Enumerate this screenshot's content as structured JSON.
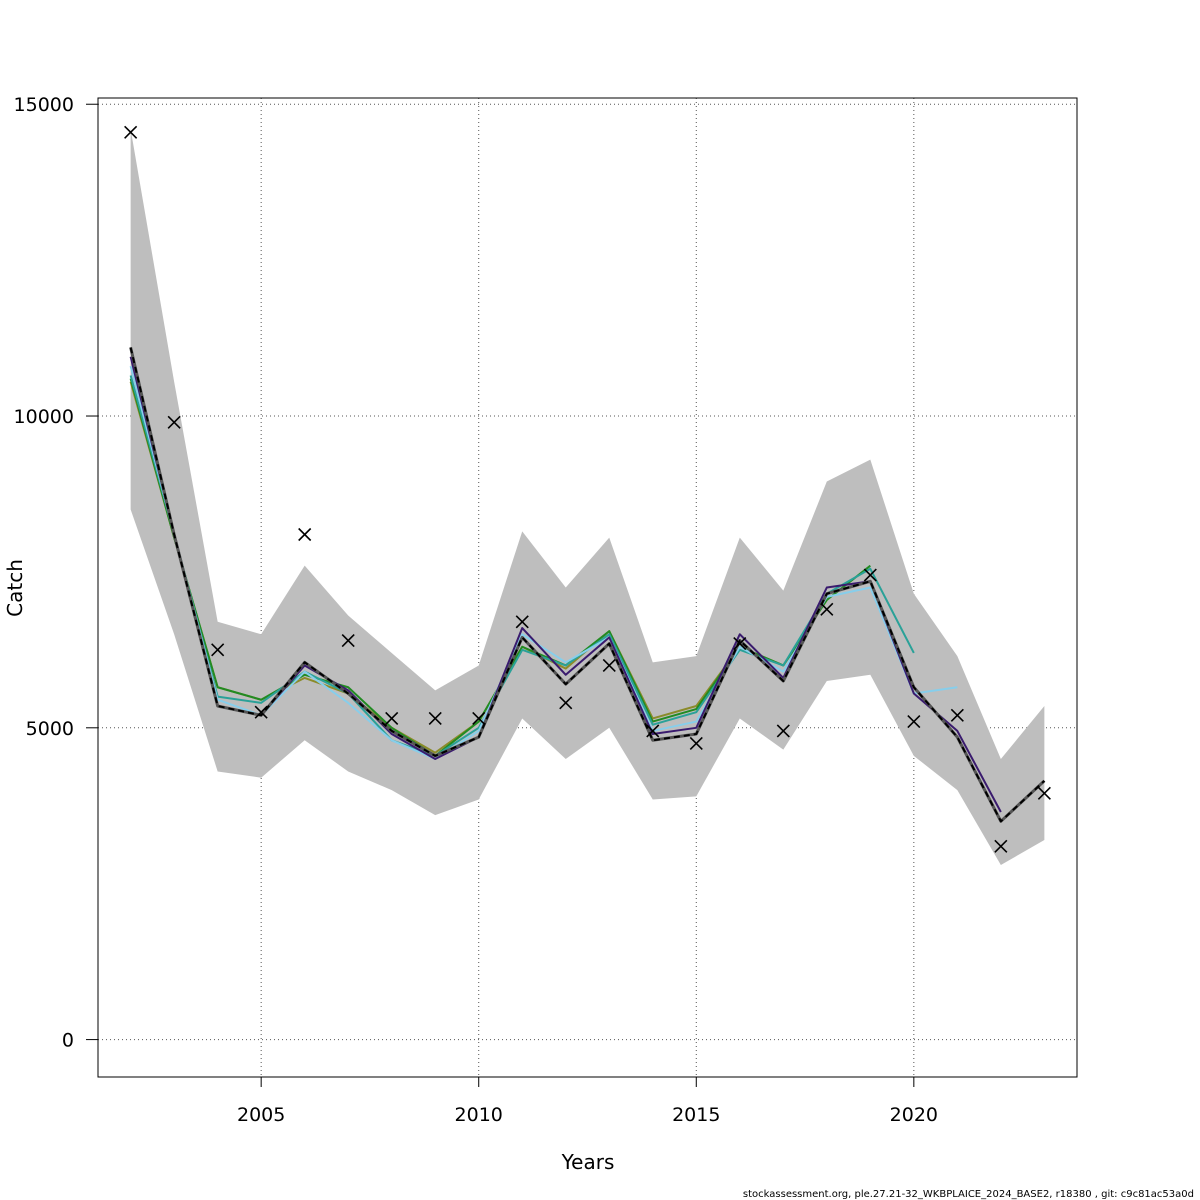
{
  "chart_data": {
    "type": "line",
    "xlabel": "Years",
    "ylabel": "Catch",
    "xlim": [
      2001.25,
      2023.75
    ],
    "ylim": [
      -600,
      15100
    ],
    "x_ticks": [
      2005,
      2010,
      2015,
      2020
    ],
    "y_ticks": [
      0,
      5000,
      10000,
      15000
    ],
    "x_tick_labels": [
      "2005",
      "2010",
      "2015",
      "2020"
    ],
    "y_tick_labels": [
      "0",
      "5000",
      "10000",
      "15000"
    ],
    "grid": true,
    "confidence_band": {
      "x": [
        2002,
        2003,
        2004,
        2005,
        2006,
        2007,
        2008,
        2009,
        2010,
        2011,
        2012,
        2013,
        2014,
        2015,
        2016,
        2017,
        2018,
        2019,
        2020,
        2021,
        2022,
        2023
      ],
      "upper": [
        14600,
        10550,
        6700,
        6500,
        7600,
        6800,
        6200,
        5600,
        6000,
        8150,
        7250,
        8050,
        6050,
        6150,
        8050,
        7200,
        8950,
        9300,
        7150,
        6150,
        4500,
        5350
      ],
      "lower": [
        8500,
        6500,
        4300,
        4200,
        4800,
        4300,
        4000,
        3600,
        3850,
        5150,
        4500,
        5000,
        3850,
        3900,
        5150,
        4650,
        5750,
        5850,
        4550,
        4000,
        2800,
        3200
      ],
      "color": "#bebebe"
    },
    "observed": {
      "x": [
        2002,
        2003,
        2004,
        2005,
        2006,
        2007,
        2008,
        2009,
        2010,
        2011,
        2012,
        2013,
        2014,
        2015,
        2016,
        2017,
        2018,
        2019,
        2020,
        2021,
        2022,
        2023
      ],
      "values": [
        14550,
        9900,
        6250,
        5250,
        8100,
        6400,
        5150,
        5150,
        5150,
        6700,
        5400,
        6000,
        4950,
        4750,
        6350,
        4950,
        6900,
        7450,
        5100,
        5200,
        3100,
        3950
      ],
      "marker": "x",
      "color": "#000000"
    },
    "series": [
      {
        "style": "dashed",
        "color": "#000000",
        "x": [
          2002,
          2003,
          2004,
          2005,
          2006,
          2007,
          2008,
          2009,
          2010,
          2011,
          2012,
          2013,
          2014,
          2015,
          2016,
          2017,
          2018,
          2019,
          2020,
          2021,
          2022,
          2023
        ],
        "values": [
          11100,
          8100,
          5350,
          5200,
          6050,
          5550,
          4950,
          4550,
          4850,
          6450,
          5700,
          6350,
          4800,
          4900,
          6400,
          5750,
          7150,
          7350,
          5650,
          4850,
          3500,
          4150
        ]
      },
      {
        "color": "#3a1b6e",
        "x": [
          2002,
          2003,
          2004,
          2005,
          2006,
          2007,
          2008,
          2009,
          2010,
          2011,
          2012,
          2013,
          2014,
          2015,
          2016,
          2017,
          2018,
          2019,
          2020,
          2021,
          2022
        ],
        "values": [
          10950,
          8100,
          5350,
          5200,
          6000,
          5600,
          4900,
          4500,
          4850,
          6600,
          5850,
          6450,
          4900,
          5000,
          6500,
          5800,
          7250,
          7350,
          5550,
          4950,
          3650
        ]
      },
      {
        "color": "#87ceeb",
        "x": [
          2002,
          2003,
          2004,
          2005,
          2006,
          2007,
          2008,
          2009,
          2010,
          2011,
          2012,
          2013,
          2014,
          2015,
          2016,
          2017,
          2018,
          2019,
          2020,
          2021
        ],
        "values": [
          10800,
          8100,
          5450,
          5200,
          5900,
          5400,
          4800,
          4500,
          4950,
          6500,
          6050,
          6450,
          4950,
          5100,
          6300,
          5900,
          7100,
          7250,
          5550,
          5650
        ]
      },
      {
        "color": "#2aa198",
        "x": [
          2002,
          2003,
          2004,
          2005,
          2006,
          2007,
          2008,
          2009,
          2010,
          2011,
          2012,
          2013,
          2014,
          2015,
          2016,
          2017,
          2018,
          2019,
          2020
        ],
        "values": [
          10650,
          8100,
          5500,
          5400,
          5900,
          5550,
          4800,
          4550,
          5000,
          6250,
          6000,
          6500,
          5050,
          5250,
          6250,
          6000,
          7150,
          7550,
          6200
        ]
      },
      {
        "color": "#228b22",
        "x": [
          2002,
          2003,
          2004,
          2005,
          2006,
          2007,
          2008,
          2009,
          2010,
          2011,
          2012,
          2013,
          2014,
          2015,
          2016,
          2017,
          2018,
          2019
        ],
        "values": [
          10600,
          8050,
          5650,
          5450,
          5850,
          5650,
          5000,
          4550,
          5100,
          6300,
          6000,
          6550,
          5100,
          5300,
          6300,
          6000,
          7050,
          7600
        ]
      },
      {
        "color": "#8b8b2a",
        "x": [
          2002,
          2003,
          2004,
          2005,
          2006,
          2007,
          2008,
          2009,
          2010,
          2011,
          2012,
          2013,
          2014,
          2015,
          2016,
          2017,
          2018
        ],
        "values": [
          10550,
          8050,
          5650,
          5450,
          5800,
          5550,
          5000,
          4600,
          5100,
          6300,
          5950,
          6550,
          5150,
          5350,
          6300,
          6000,
          7050
        ]
      }
    ]
  },
  "footer": "stockassessment.org, ple.27.21-32_WKBPLAICE_2024_BASE2, r18380 , git: c9c81ac53a0d"
}
